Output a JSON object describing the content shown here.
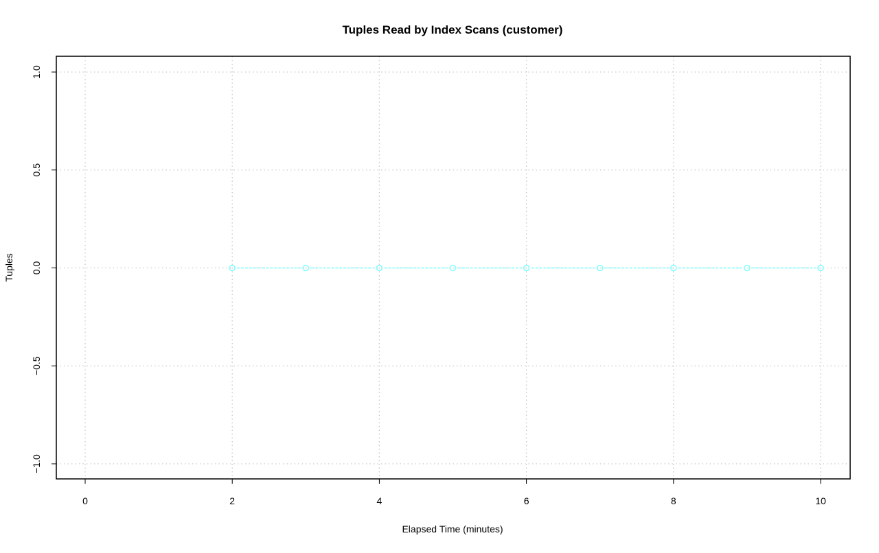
{
  "chart_data": {
    "type": "line",
    "title": "Tuples Read by Index Scans (customer)",
    "xlabel": "Elapsed Time (minutes)",
    "ylabel": "Tuples",
    "xlim": [
      0,
      10
    ],
    "ylim": [
      -1.0,
      1.0
    ],
    "x_ticks": [
      "0",
      "2",
      "4",
      "6",
      "8",
      "10"
    ],
    "y_ticks": [
      "-1.0",
      "-0.5",
      "0.0",
      "0.5",
      "1.0"
    ],
    "x_grid": [
      0,
      2,
      4,
      6,
      8,
      10
    ],
    "y_grid": [
      -1.0,
      -0.5,
      0.0,
      0.5,
      1.0
    ],
    "grid": true,
    "series": [
      {
        "color": "#7fffff",
        "marker": "open-circle",
        "line_style": "dashed",
        "x": [
          2,
          3,
          4,
          5,
          6,
          7,
          8,
          9,
          10
        ],
        "y": [
          0,
          0,
          0,
          0,
          0,
          0,
          0,
          0,
          0
        ]
      }
    ]
  }
}
